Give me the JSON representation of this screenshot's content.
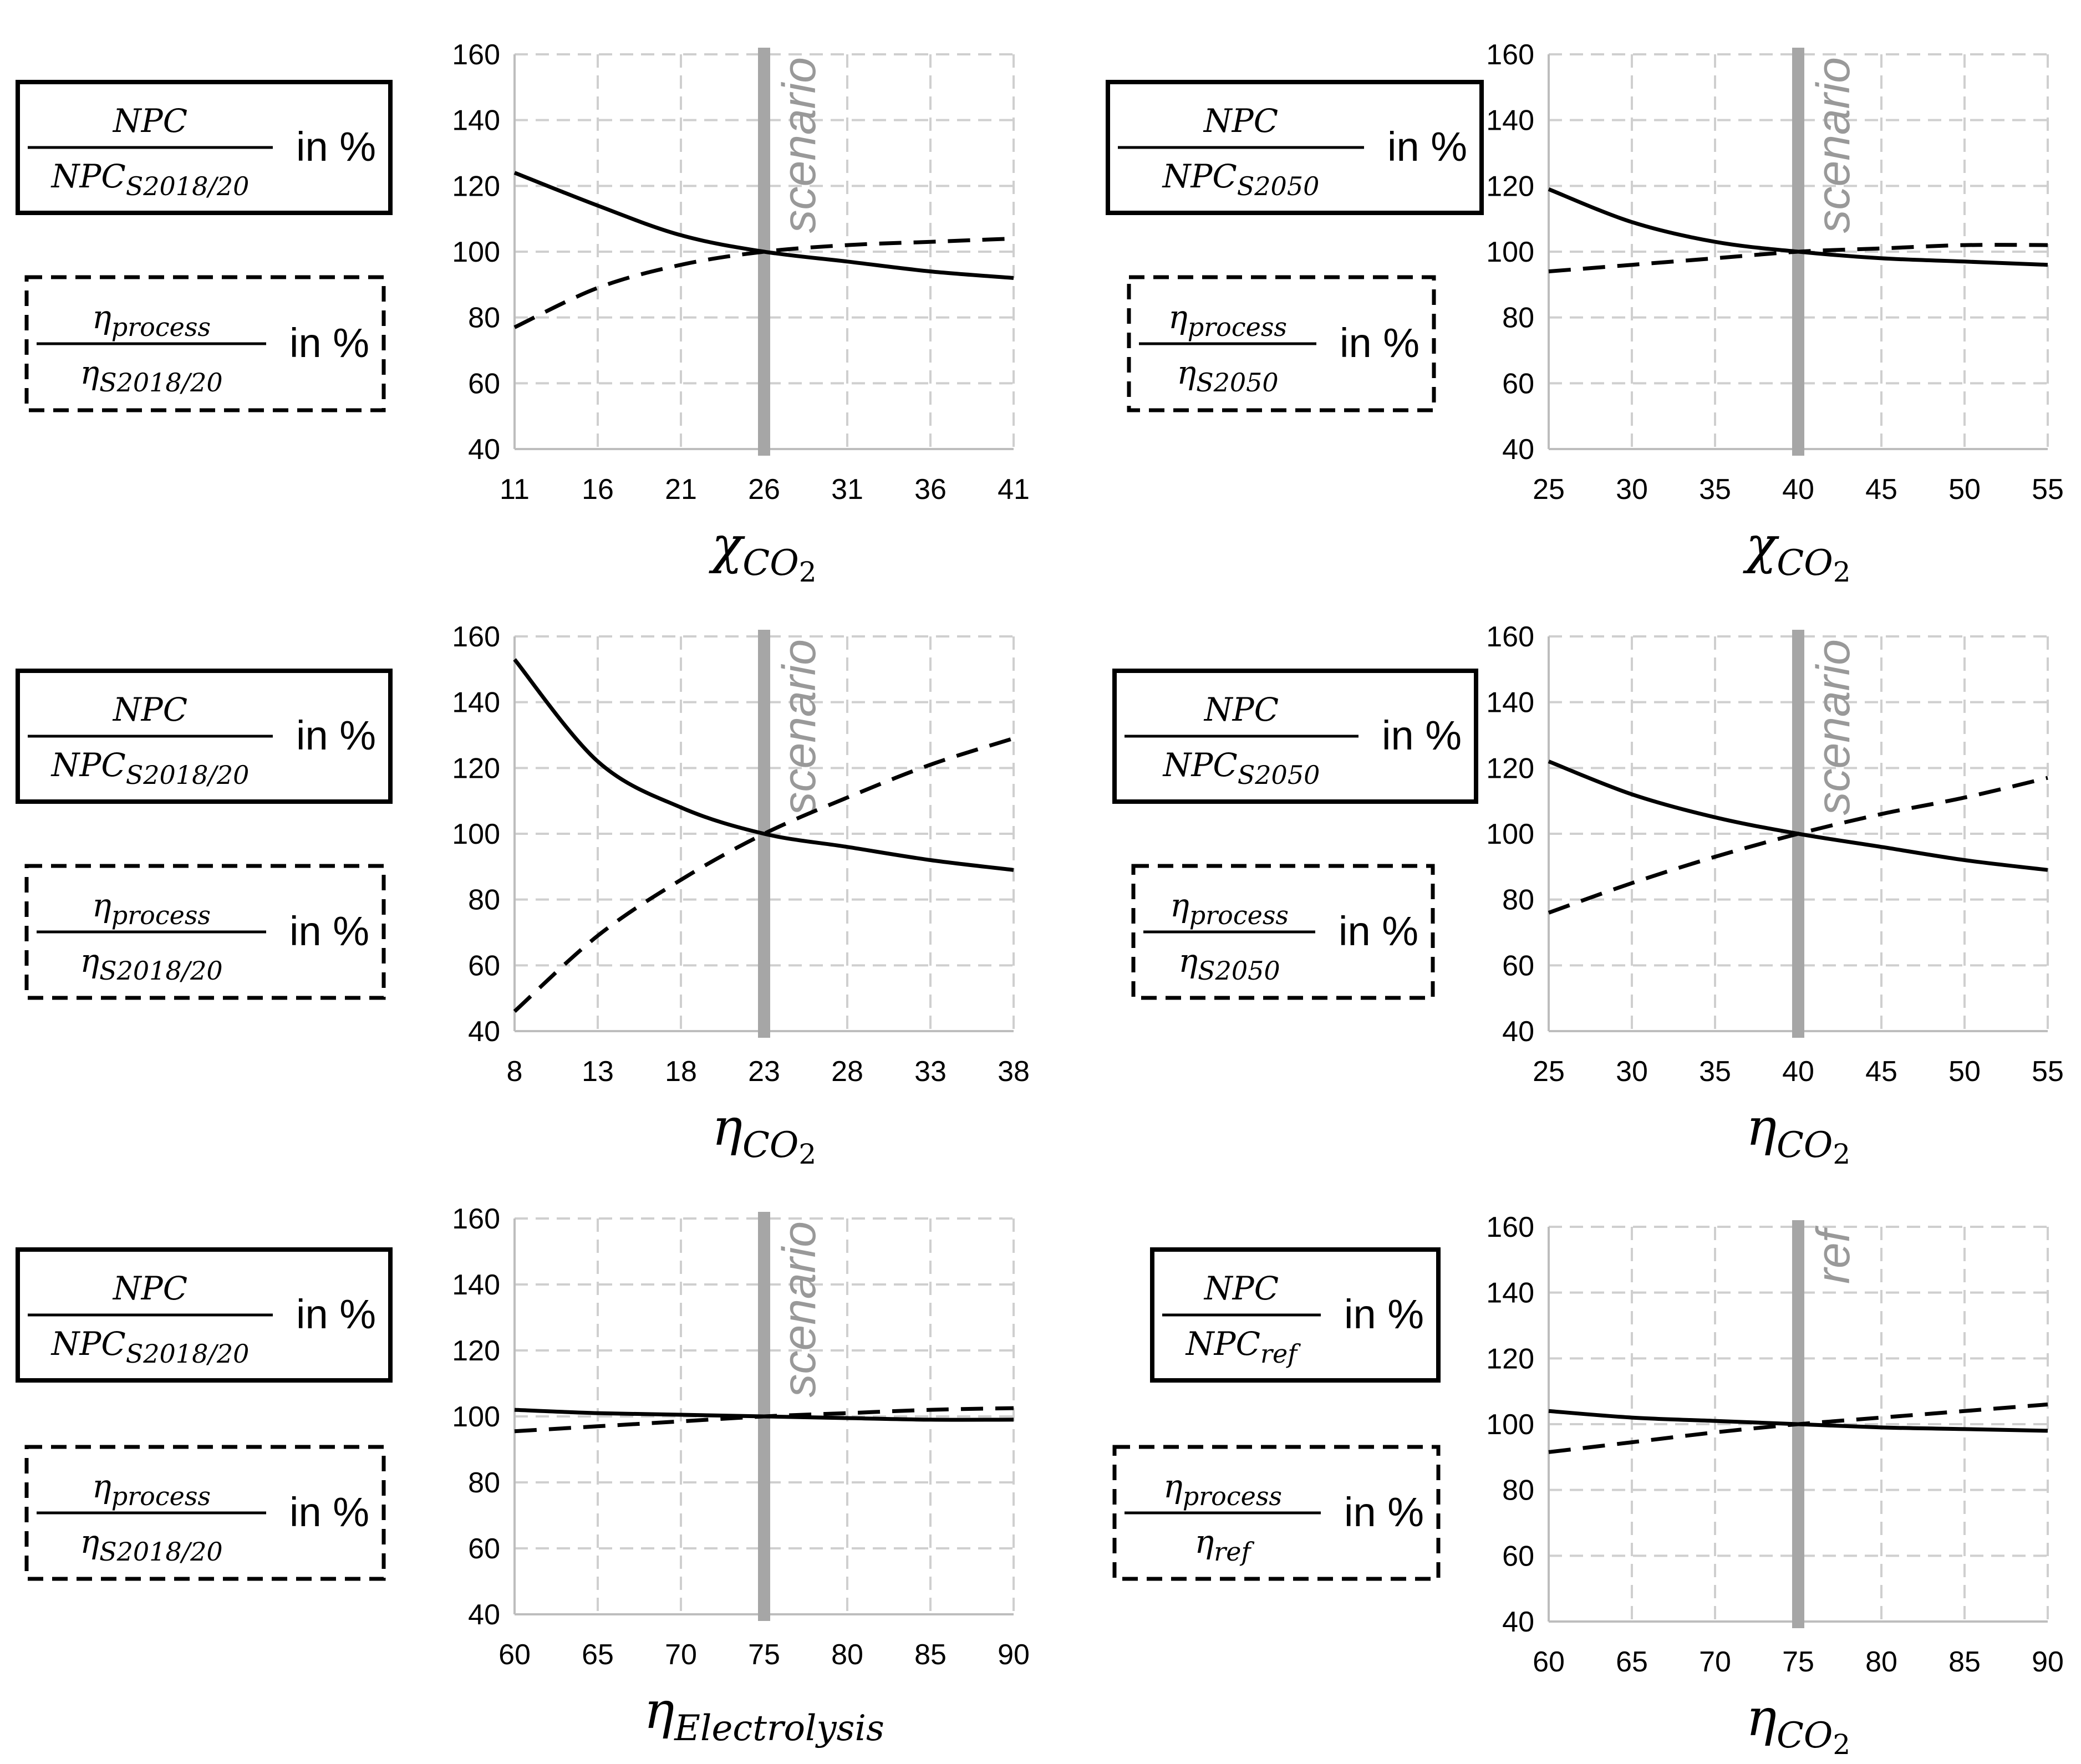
{
  "chart_data": [
    {
      "type": "line",
      "x": [
        11,
        16,
        21,
        26,
        31,
        36,
        41
      ],
      "xlabel": {
        "base": "χ",
        "sub": "CO",
        "subsub": "2"
      },
      "ylim": [
        40,
        160
      ],
      "yticks": [
        40,
        60,
        80,
        100,
        120,
        140,
        160
      ],
      "grid": true,
      "marker_value": 26,
      "marker_label": "scenario",
      "series": [
        {
          "name": "NPC / NPC_S2018/20",
          "style": "solid",
          "values": [
            124,
            114,
            105,
            100,
            97,
            94,
            92
          ]
        },
        {
          "name": "η_process / η_S2018/20",
          "style": "dashed",
          "values": [
            77,
            89,
            96,
            100,
            102,
            103,
            104
          ]
        }
      ],
      "legend_solid": {
        "num": "NPC",
        "den_base": "NPC",
        "den_sub": "S2018/20",
        "suffix": "in %"
      },
      "legend_dashed": {
        "num": "η",
        "num_sub": "process",
        "den_base": "η",
        "den_sub": "S2018/20",
        "suffix": "in %"
      }
    },
    {
      "type": "line",
      "x": [
        25,
        30,
        35,
        40,
        45,
        50,
        55
      ],
      "xlabel": {
        "base": "χ",
        "sub": "CO",
        "subsub": "2"
      },
      "ylim": [
        40,
        160
      ],
      "yticks": [
        40,
        60,
        80,
        100,
        120,
        140,
        160
      ],
      "grid": true,
      "marker_value": 40,
      "marker_label": "scenario",
      "series": [
        {
          "name": "NPC / NPC_S2050",
          "style": "solid",
          "values": [
            119,
            109,
            103,
            100,
            98,
            97,
            96
          ]
        },
        {
          "name": "η_process / η_S2050",
          "style": "dashed",
          "values": [
            94,
            96,
            98,
            100,
            101,
            102,
            102
          ]
        }
      ],
      "legend_solid": {
        "num": "NPC",
        "den_base": "NPC",
        "den_sub": "S2050",
        "suffix": "in %"
      },
      "legend_dashed": {
        "num": "η",
        "num_sub": "process",
        "den_base": "η",
        "den_sub": "S2050",
        "suffix": "in %"
      }
    },
    {
      "type": "line",
      "x": [
        8,
        13,
        18,
        23,
        28,
        33,
        38
      ],
      "xlabel": {
        "base": "η",
        "sub": "CO",
        "subsub": "2"
      },
      "ylim": [
        40,
        160
      ],
      "yticks": [
        40,
        60,
        80,
        100,
        120,
        140,
        160
      ],
      "grid": true,
      "marker_value": 23,
      "marker_label": "scenario",
      "series": [
        {
          "name": "NPC / NPC_S2018/20",
          "style": "solid",
          "values": [
            153,
            122,
            108,
            100,
            96,
            92,
            89
          ]
        },
        {
          "name": "η_process / η_S2018/20",
          "style": "dashed",
          "values": [
            46,
            69,
            86,
            100,
            111,
            121,
            129
          ]
        }
      ],
      "legend_solid": {
        "num": "NPC",
        "den_base": "NPC",
        "den_sub": "S2018/20",
        "suffix": "in %"
      },
      "legend_dashed": {
        "num": "η",
        "num_sub": "process",
        "den_base": "η",
        "den_sub": "S2018/20",
        "suffix": "in %"
      }
    },
    {
      "type": "line",
      "x": [
        25,
        30,
        35,
        40,
        45,
        50,
        55
      ],
      "xlabel": {
        "base": "η",
        "sub": "CO",
        "subsub": "2"
      },
      "ylim": [
        40,
        160
      ],
      "yticks": [
        40,
        60,
        80,
        100,
        120,
        140,
        160
      ],
      "grid": true,
      "marker_value": 40,
      "marker_label": "scenario",
      "series": [
        {
          "name": "NPC / NPC_S2050",
          "style": "solid",
          "values": [
            122,
            112,
            105,
            100,
            96,
            92,
            89
          ]
        },
        {
          "name": "η_process / η_S2050",
          "style": "dashed",
          "values": [
            76,
            85,
            93,
            100,
            106,
            111,
            117
          ]
        }
      ],
      "legend_solid": {
        "num": "NPC",
        "den_base": "NPC",
        "den_sub": "S2050",
        "suffix": "in %"
      },
      "legend_dashed": {
        "num": "η",
        "num_sub": "process",
        "den_base": "η",
        "den_sub": "S2050",
        "suffix": "in %"
      }
    },
    {
      "type": "line",
      "x": [
        60,
        65,
        70,
        75,
        80,
        85,
        90
      ],
      "xlabel": {
        "base": "η",
        "sub": "Electrolysis",
        "subsub": ""
      },
      "ylim": [
        40,
        160
      ],
      "yticks": [
        40,
        60,
        80,
        100,
        120,
        140,
        160
      ],
      "grid": true,
      "marker_value": 75,
      "marker_label": "scenario",
      "series": [
        {
          "name": "NPC / NPC_S2018/20",
          "style": "solid",
          "values": [
            102,
            101,
            100.5,
            100,
            99.5,
            99,
            99
          ]
        },
        {
          "name": "η_process / η_S2018/20",
          "style": "dashed",
          "values": [
            95.5,
            97,
            98.5,
            100,
            101,
            102,
            102.5
          ]
        }
      ],
      "legend_solid": {
        "num": "NPC",
        "den_base": "NPC",
        "den_sub": "S2018/20",
        "suffix": "in %"
      },
      "legend_dashed": {
        "num": "η",
        "num_sub": "process",
        "den_base": "η",
        "den_sub": "S2018/20",
        "suffix": "in %"
      }
    },
    {
      "type": "line",
      "x": [
        60,
        65,
        70,
        75,
        80,
        85,
        90
      ],
      "xlabel": {
        "base": "η",
        "sub": "CO",
        "subsub": "2"
      },
      "ylim": [
        40,
        160
      ],
      "yticks": [
        40,
        60,
        80,
        100,
        120,
        140,
        160
      ],
      "grid": true,
      "marker_value": 75,
      "marker_label": "ref",
      "series": [
        {
          "name": "NPC / NPC_ref",
          "style": "solid",
          "values": [
            104,
            102,
            101,
            100,
            99,
            98.5,
            98
          ]
        },
        {
          "name": "η_process / η_ref",
          "style": "dashed",
          "values": [
            91.5,
            94.5,
            97.5,
            100,
            102,
            104,
            106
          ]
        }
      ],
      "legend_solid": {
        "num": "NPC",
        "den_base": "NPC",
        "den_sub": "ref",
        "suffix": "in %"
      },
      "legend_dashed": {
        "num": "η",
        "num_sub": "process",
        "den_base": "η",
        "den_sub": "ref",
        "suffix": "in %"
      }
    }
  ]
}
